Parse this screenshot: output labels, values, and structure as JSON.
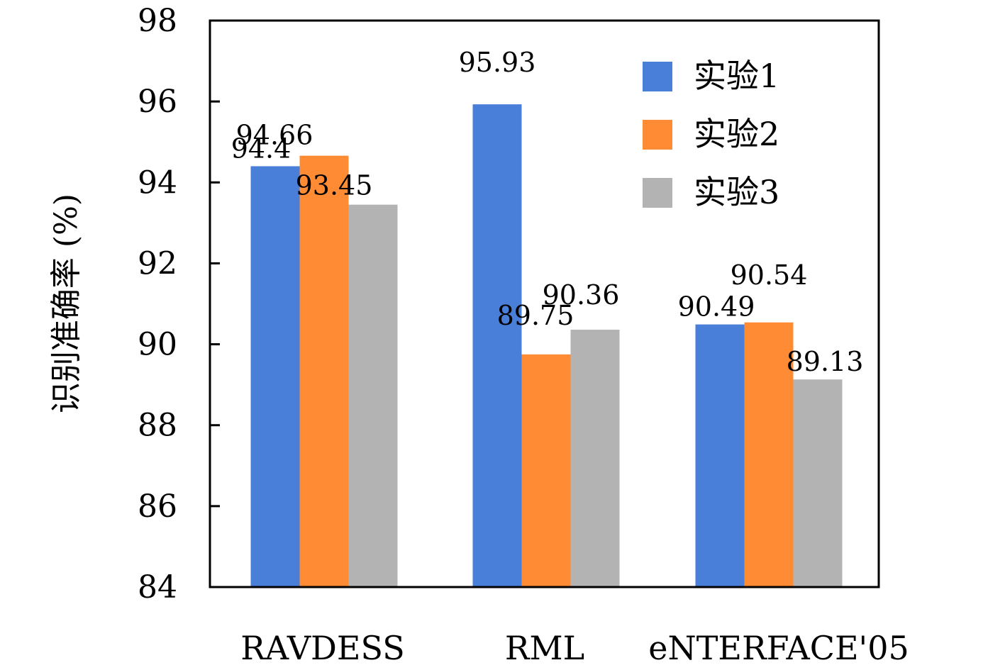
{
  "chart_data": {
    "type": "bar",
    "categories": [
      "RAVDESS",
      "RML",
      "eNTERFACE'05"
    ],
    "series": [
      {
        "name": "实验1",
        "color": "#4a7fd9",
        "values": [
          94.4,
          95.93,
          90.49
        ]
      },
      {
        "name": "实验2",
        "color": "#ff8c35",
        "values": [
          94.66,
          89.75,
          90.54
        ]
      },
      {
        "name": "实验3",
        "color": "#b3b3b3",
        "values": [
          93.45,
          90.36,
          89.13
        ]
      }
    ],
    "data_labels": [
      [
        "94.4",
        "95.93",
        "90.49"
      ],
      [
        "94.66",
        "89.75",
        "90.54"
      ],
      [
        "93.45",
        "90.36",
        "89.13"
      ]
    ],
    "ylabel": "识别准确率 (%)",
    "xlabel": "",
    "title": "",
    "ylim": [
      84,
      98
    ],
    "yticks": [
      84,
      86,
      88,
      90,
      92,
      94,
      96,
      98
    ],
    "legend_position": "top-right",
    "grid": false
  }
}
